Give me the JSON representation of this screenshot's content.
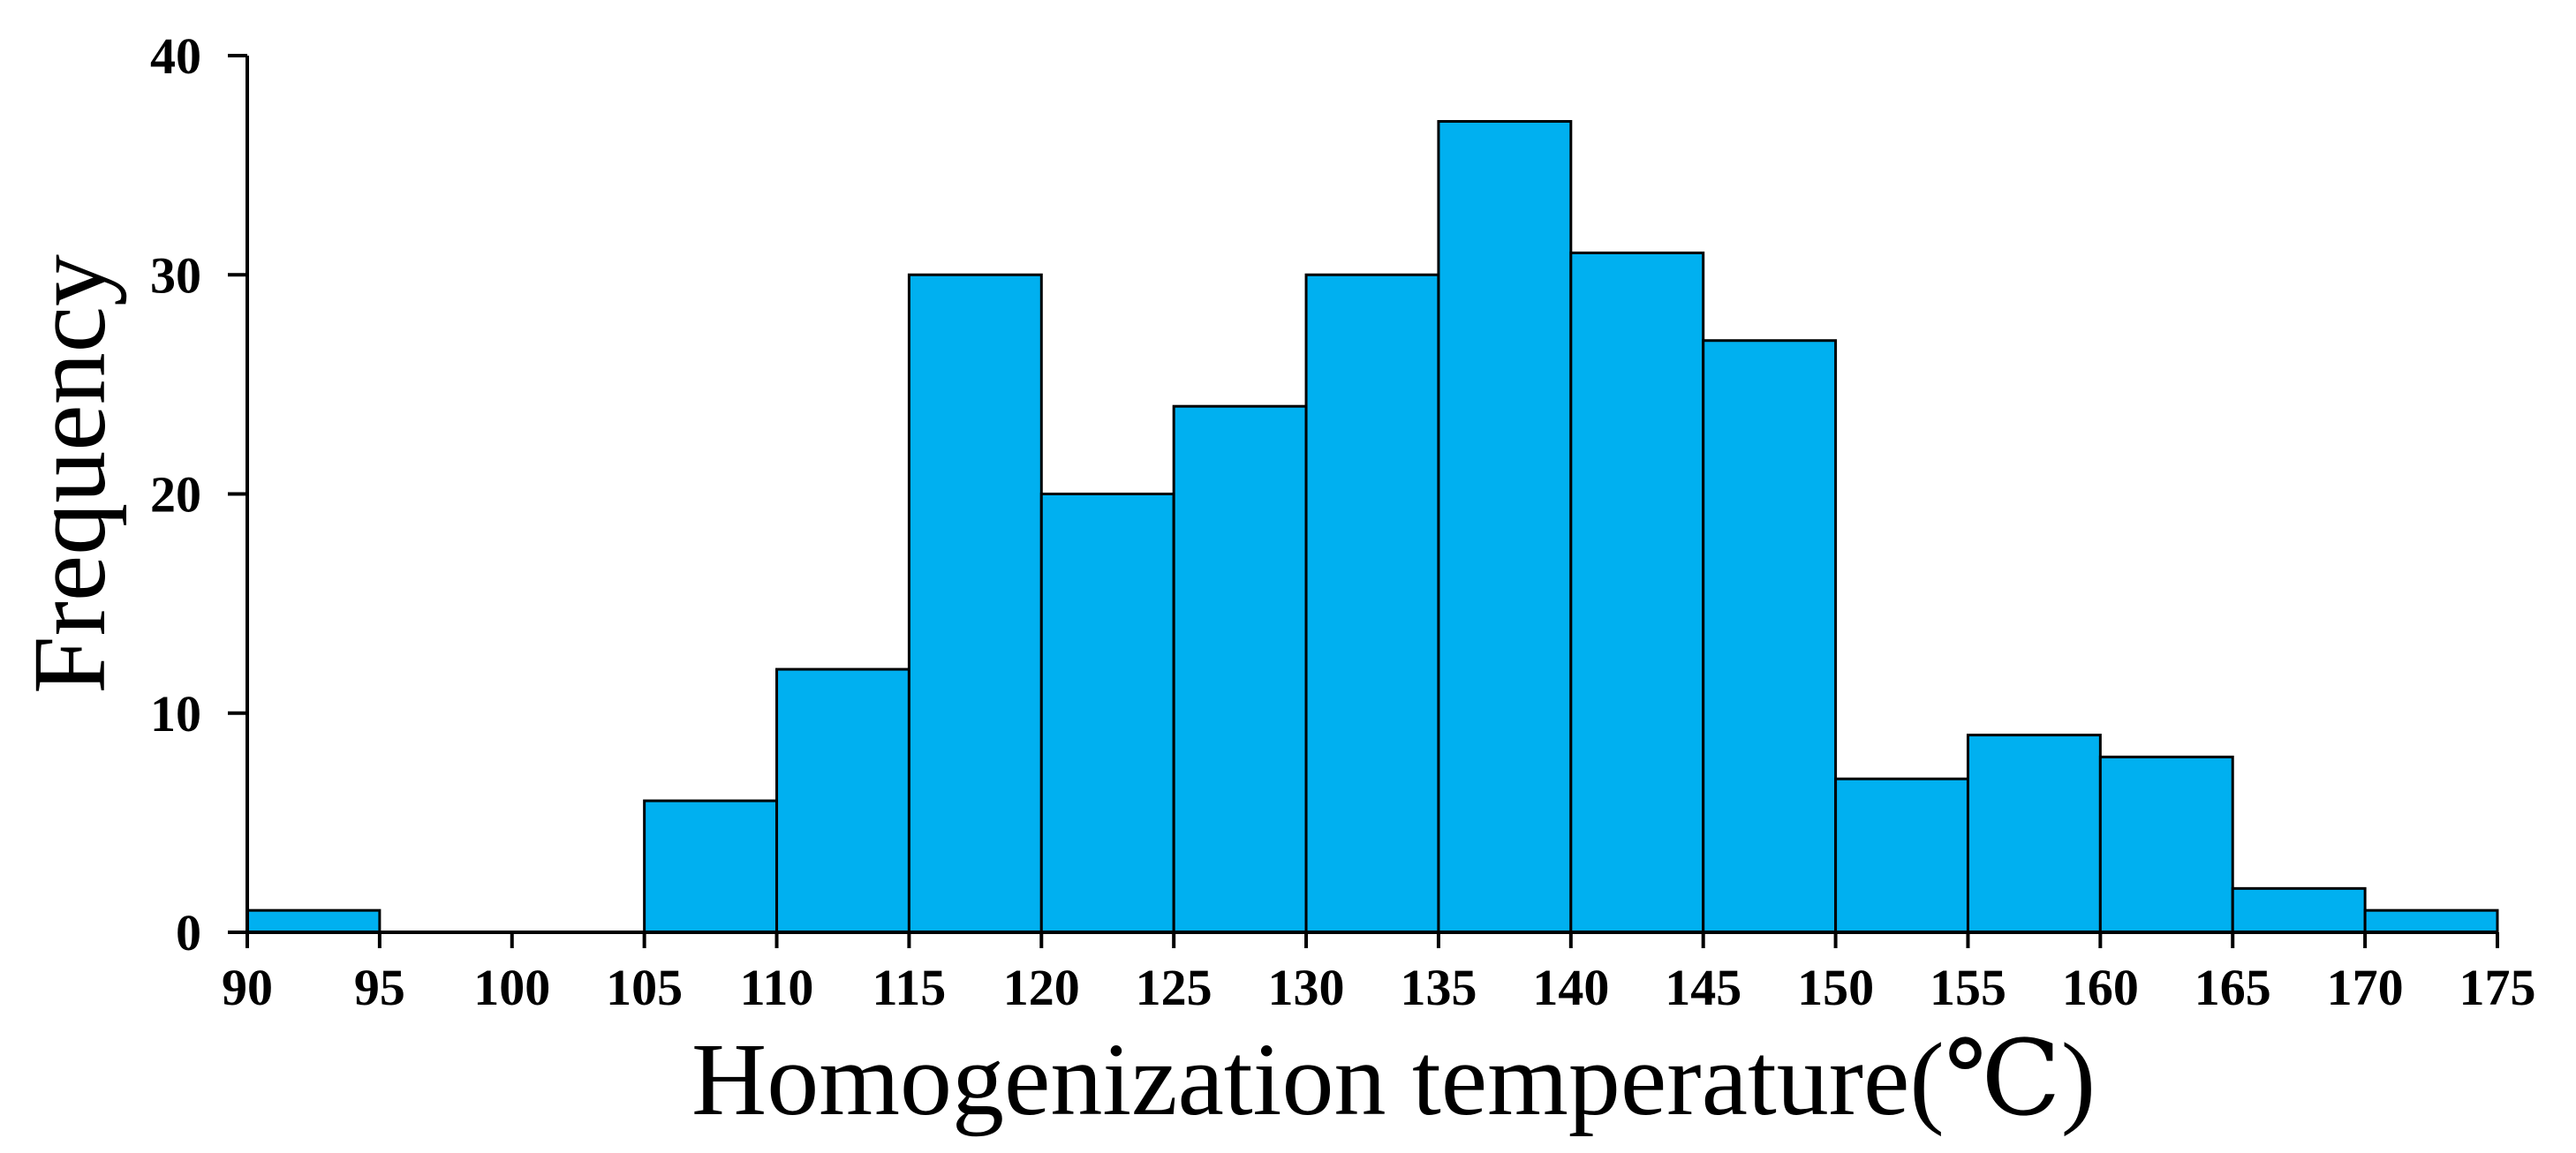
{
  "chart_data": {
    "type": "bar",
    "variant": "histogram",
    "title": "",
    "xlabel": "Homogenization temperature(℃)",
    "ylabel": "Frequency",
    "bin_edges": [
      90,
      95,
      100,
      105,
      110,
      115,
      120,
      125,
      130,
      135,
      140,
      145,
      150,
      155,
      160,
      165,
      170,
      175
    ],
    "values": [
      1,
      0,
      0,
      6,
      12,
      30,
      20,
      24,
      30,
      37,
      31,
      27,
      7,
      9,
      8,
      2,
      1
    ],
    "x_ticks": [
      90,
      95,
      100,
      105,
      110,
      115,
      120,
      125,
      130,
      135,
      140,
      145,
      150,
      155,
      160,
      165,
      170,
      175
    ],
    "y_ticks": [
      0,
      10,
      20,
      30,
      40
    ],
    "xlim": [
      90,
      175
    ],
    "ylim": [
      0,
      40
    ],
    "grid": false,
    "legend": "none",
    "bar_color": "#00B0F0",
    "edge_color": "#000000"
  }
}
